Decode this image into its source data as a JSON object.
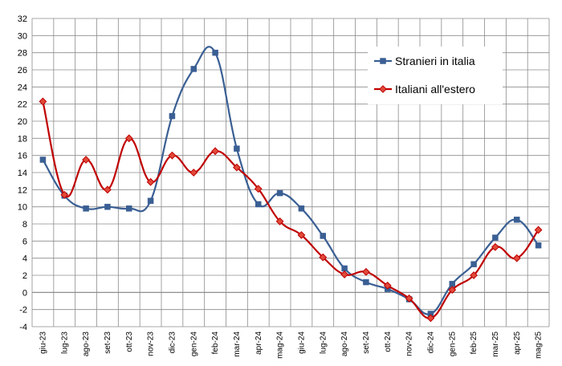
{
  "chart_data": {
    "type": "line",
    "title": "",
    "xlabel": "",
    "ylabel": "",
    "categories": [
      "giu-23",
      "lug-23",
      "ago-23",
      "set-23",
      "ott-23",
      "nov-23",
      "dic-23",
      "gen-24",
      "feb-24",
      "mar-24",
      "apr-24",
      "mag-24",
      "giu-24",
      "lug-24",
      "ago-24",
      "set-24",
      "ott-24",
      "nov-24",
      "dic-24",
      "gen-25",
      "feb-25",
      "mar-25",
      "apr-25",
      "mag-25"
    ],
    "ylim": [
      -4,
      32
    ],
    "yticks": [
      -4,
      -2,
      0,
      2,
      4,
      6,
      8,
      10,
      12,
      14,
      16,
      18,
      20,
      22,
      24,
      26,
      28,
      30,
      32
    ],
    "grid": true,
    "legend_position": "top-right",
    "series": [
      {
        "name": "Stranieri in italia",
        "color": "#3a5f94",
        "marker": "square",
        "values": [
          15.5,
          11.3,
          9.8,
          10.0,
          9.8,
          10.7,
          20.6,
          26.1,
          28.0,
          16.8,
          10.3,
          11.6,
          9.8,
          6.6,
          2.8,
          1.2,
          0.4,
          -0.8,
          -2.5,
          1.0,
          3.3,
          6.4,
          8.5,
          5.5
        ]
      },
      {
        "name": "Italiani all'estero",
        "color": "#c00000",
        "marker": "diamond",
        "values": [
          22.3,
          11.4,
          15.5,
          12.0,
          18.0,
          12.9,
          16.0,
          14.0,
          16.5,
          14.6,
          12.1,
          8.3,
          6.7,
          4.1,
          2.1,
          2.4,
          0.8,
          -0.7,
          -3.0,
          0.3,
          2.0,
          5.3,
          4.0,
          7.3
        ]
      }
    ]
  }
}
